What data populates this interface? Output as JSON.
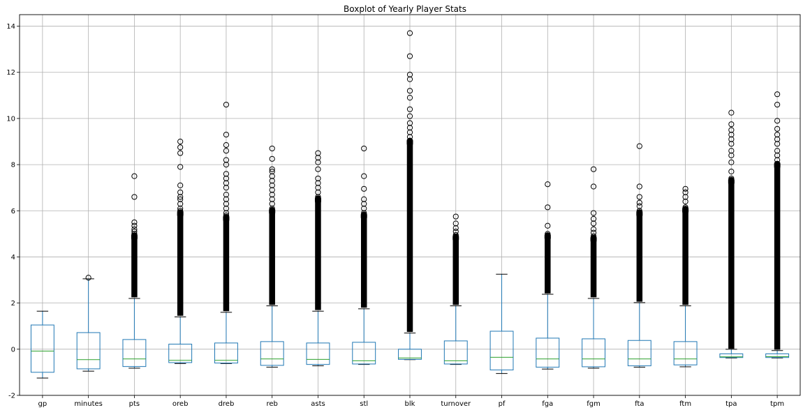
{
  "chart_data": {
    "type": "box",
    "title": "Boxplot of Yearly Player Stats",
    "xlabel": "",
    "ylabel": "",
    "ylim": [
      -2,
      14.5
    ],
    "yticks": [
      -2,
      0,
      2,
      4,
      6,
      8,
      10,
      12,
      14
    ],
    "grid": true,
    "colors": {
      "box": "#1f77b4",
      "median": "#2ca02c",
      "whisker": "#1f77b4",
      "cap": "#000000",
      "grid": "#b0b0b0",
      "axis": "#000000"
    },
    "categories": [
      "gp",
      "minutes",
      "pts",
      "oreb",
      "dreb",
      "reb",
      "asts",
      "stl",
      "blk",
      "turnover",
      "pf",
      "fga",
      "fgm",
      "fta",
      "ftm",
      "tpa",
      "tpm"
    ],
    "boxes": [
      {
        "label": "gp",
        "whislo": -1.25,
        "q1": -1.0,
        "med": -0.08,
        "q3": 1.05,
        "whishi": 1.65,
        "dense_from": null,
        "dense_to": null,
        "fliers": []
      },
      {
        "label": "minutes",
        "whislo": -0.95,
        "q1": -0.85,
        "med": -0.45,
        "q3": 0.72,
        "whishi": 3.05,
        "dense_from": null,
        "dense_to": null,
        "fliers": [
          3.1
        ]
      },
      {
        "label": "pts",
        "whislo": -0.82,
        "q1": -0.75,
        "med": -0.42,
        "q3": 0.42,
        "whishi": 2.2,
        "dense_from": 2.25,
        "dense_to": 4.9,
        "fliers": [
          5.0,
          5.1,
          5.2,
          5.35,
          5.5,
          6.6,
          7.5
        ]
      },
      {
        "label": "oreb",
        "whislo": -0.62,
        "q1": -0.58,
        "med": -0.48,
        "q3": 0.22,
        "whishi": 1.4,
        "dense_from": 1.45,
        "dense_to": 5.9,
        "fliers": [
          6.0,
          6.1,
          6.3,
          6.5,
          6.6,
          6.8,
          7.1,
          7.9,
          8.5,
          8.75,
          9.0
        ]
      },
      {
        "label": "dreb",
        "whislo": -0.62,
        "q1": -0.6,
        "med": -0.48,
        "q3": 0.27,
        "whishi": 1.6,
        "dense_from": 1.65,
        "dense_to": 5.7,
        "fliers": [
          5.8,
          5.9,
          6.1,
          6.3,
          6.5,
          6.7,
          7.0,
          7.2,
          7.4,
          7.6,
          8.0,
          8.2,
          8.6,
          8.85,
          9.3,
          10.6
        ]
      },
      {
        "label": "reb",
        "whislo": -0.78,
        "q1": -0.7,
        "med": -0.42,
        "q3": 0.33,
        "whishi": 1.88,
        "dense_from": 1.92,
        "dense_to": 6.0,
        "fliers": [
          6.1,
          6.3,
          6.5,
          6.7,
          6.9,
          7.1,
          7.3,
          7.5,
          7.7,
          7.8,
          8.25,
          8.7
        ]
      },
      {
        "label": "asts",
        "whislo": -0.72,
        "q1": -0.66,
        "med": -0.44,
        "q3": 0.27,
        "whishi": 1.65,
        "dense_from": 1.7,
        "dense_to": 6.5,
        "fliers": [
          6.6,
          6.8,
          7.0,
          7.2,
          7.4,
          7.8,
          8.1,
          8.3,
          8.5
        ]
      },
      {
        "label": "stl",
        "whislo": -0.66,
        "q1": -0.64,
        "med": -0.5,
        "q3": 0.3,
        "whishi": 1.75,
        "dense_from": 1.8,
        "dense_to": 5.8,
        "fliers": [
          5.9,
          6.1,
          6.3,
          6.5,
          6.95,
          7.5,
          8.7
        ]
      },
      {
        "label": "blk",
        "whislo": -0.45,
        "q1": -0.44,
        "med": -0.38,
        "q3": 0.0,
        "whishi": 0.7,
        "dense_from": 0.75,
        "dense_to": 9.0,
        "fliers": [
          9.2,
          9.4,
          9.6,
          9.8,
          10.1,
          10.4,
          10.9,
          11.2,
          11.7,
          11.9,
          12.7,
          13.7
        ]
      },
      {
        "label": "turnover",
        "whislo": -0.66,
        "q1": -0.64,
        "med": -0.5,
        "q3": 0.36,
        "whishi": 1.88,
        "dense_from": 1.92,
        "dense_to": 4.85,
        "fliers": [
          4.95,
          5.1,
          5.25,
          5.45,
          5.75
        ]
      },
      {
        "label": "pf",
        "whislo": -1.05,
        "q1": -0.9,
        "med": -0.35,
        "q3": 0.78,
        "whishi": 3.25,
        "dense_from": null,
        "dense_to": null,
        "fliers": []
      },
      {
        "label": "fga",
        "whislo": -0.86,
        "q1": -0.78,
        "med": -0.42,
        "q3": 0.48,
        "whishi": 2.38,
        "dense_from": 2.42,
        "dense_to": 4.9,
        "fliers": [
          5.0,
          5.35,
          6.15,
          7.15
        ]
      },
      {
        "label": "fgm",
        "whislo": -0.82,
        "q1": -0.76,
        "med": -0.42,
        "q3": 0.45,
        "whishi": 2.2,
        "dense_from": 2.25,
        "dense_to": 4.8,
        "fliers": [
          4.9,
          5.05,
          5.2,
          5.45,
          5.65,
          5.9,
          7.05,
          7.8
        ]
      },
      {
        "label": "fta",
        "whislo": -0.78,
        "q1": -0.72,
        "med": -0.42,
        "q3": 0.38,
        "whishi": 2.02,
        "dense_from": 2.06,
        "dense_to": 5.9,
        "fliers": [
          6.0,
          6.2,
          6.35,
          6.6,
          7.05,
          8.8
        ]
      },
      {
        "label": "ftm",
        "whislo": -0.76,
        "q1": -0.68,
        "med": -0.42,
        "q3": 0.33,
        "whishi": 1.88,
        "dense_from": 1.92,
        "dense_to": 6.05,
        "fliers": [
          6.15,
          6.4,
          6.6,
          6.8,
          6.95
        ]
      },
      {
        "label": "tpa",
        "whislo": -0.38,
        "q1": -0.36,
        "med": -0.33,
        "q3": -0.2,
        "whishi": 0.0,
        "dense_from": 0.02,
        "dense_to": 7.3,
        "fliers": [
          7.4,
          7.7,
          8.1,
          8.4,
          8.6,
          8.9,
          9.1,
          9.3,
          9.5,
          9.75,
          10.25
        ]
      },
      {
        "label": "tpm",
        "whislo": -0.38,
        "q1": -0.36,
        "med": -0.32,
        "q3": -0.2,
        "whishi": -0.06,
        "dense_from": -0.02,
        "dense_to": 8.0,
        "fliers": [
          8.2,
          8.4,
          8.6,
          8.9,
          9.1,
          9.3,
          9.55,
          9.9,
          10.6,
          11.05
        ]
      }
    ]
  }
}
